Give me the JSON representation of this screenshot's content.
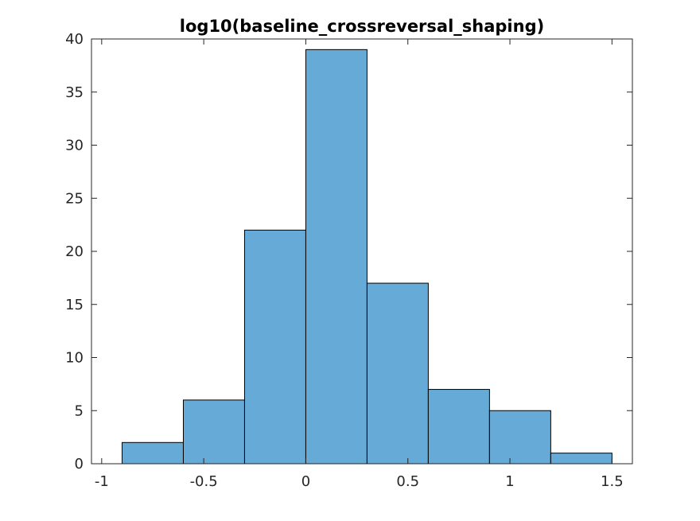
{
  "chart_data": {
    "type": "bar",
    "subtype": "histogram",
    "title": "log10(baseline_crossreversal_shaping)",
    "xlabel": "",
    "ylabel": "",
    "bin_edges": [
      -0.9,
      -0.6,
      -0.3,
      0.0,
      0.3,
      0.6,
      0.9,
      1.2,
      1.5
    ],
    "values": [
      2,
      6,
      22,
      39,
      17,
      7,
      5,
      1
    ],
    "xlim": [
      -1.05,
      1.6
    ],
    "ylim": [
      0,
      40
    ],
    "xticks": [
      -1,
      -0.5,
      0,
      0.5,
      1,
      1.5
    ],
    "xtick_labels": [
      "-1",
      "-0.5",
      "0",
      "0.5",
      "1",
      "1.5"
    ],
    "yticks": [
      0,
      5,
      10,
      15,
      20,
      25,
      30,
      35,
      40
    ],
    "ytick_labels": [
      "0",
      "5",
      "10",
      "15",
      "20",
      "25",
      "30",
      "35",
      "40"
    ],
    "grid": false,
    "legend": "none",
    "bar_color": "#66aad7",
    "edge_color": "#000000",
    "axis_color": "#262626"
  }
}
